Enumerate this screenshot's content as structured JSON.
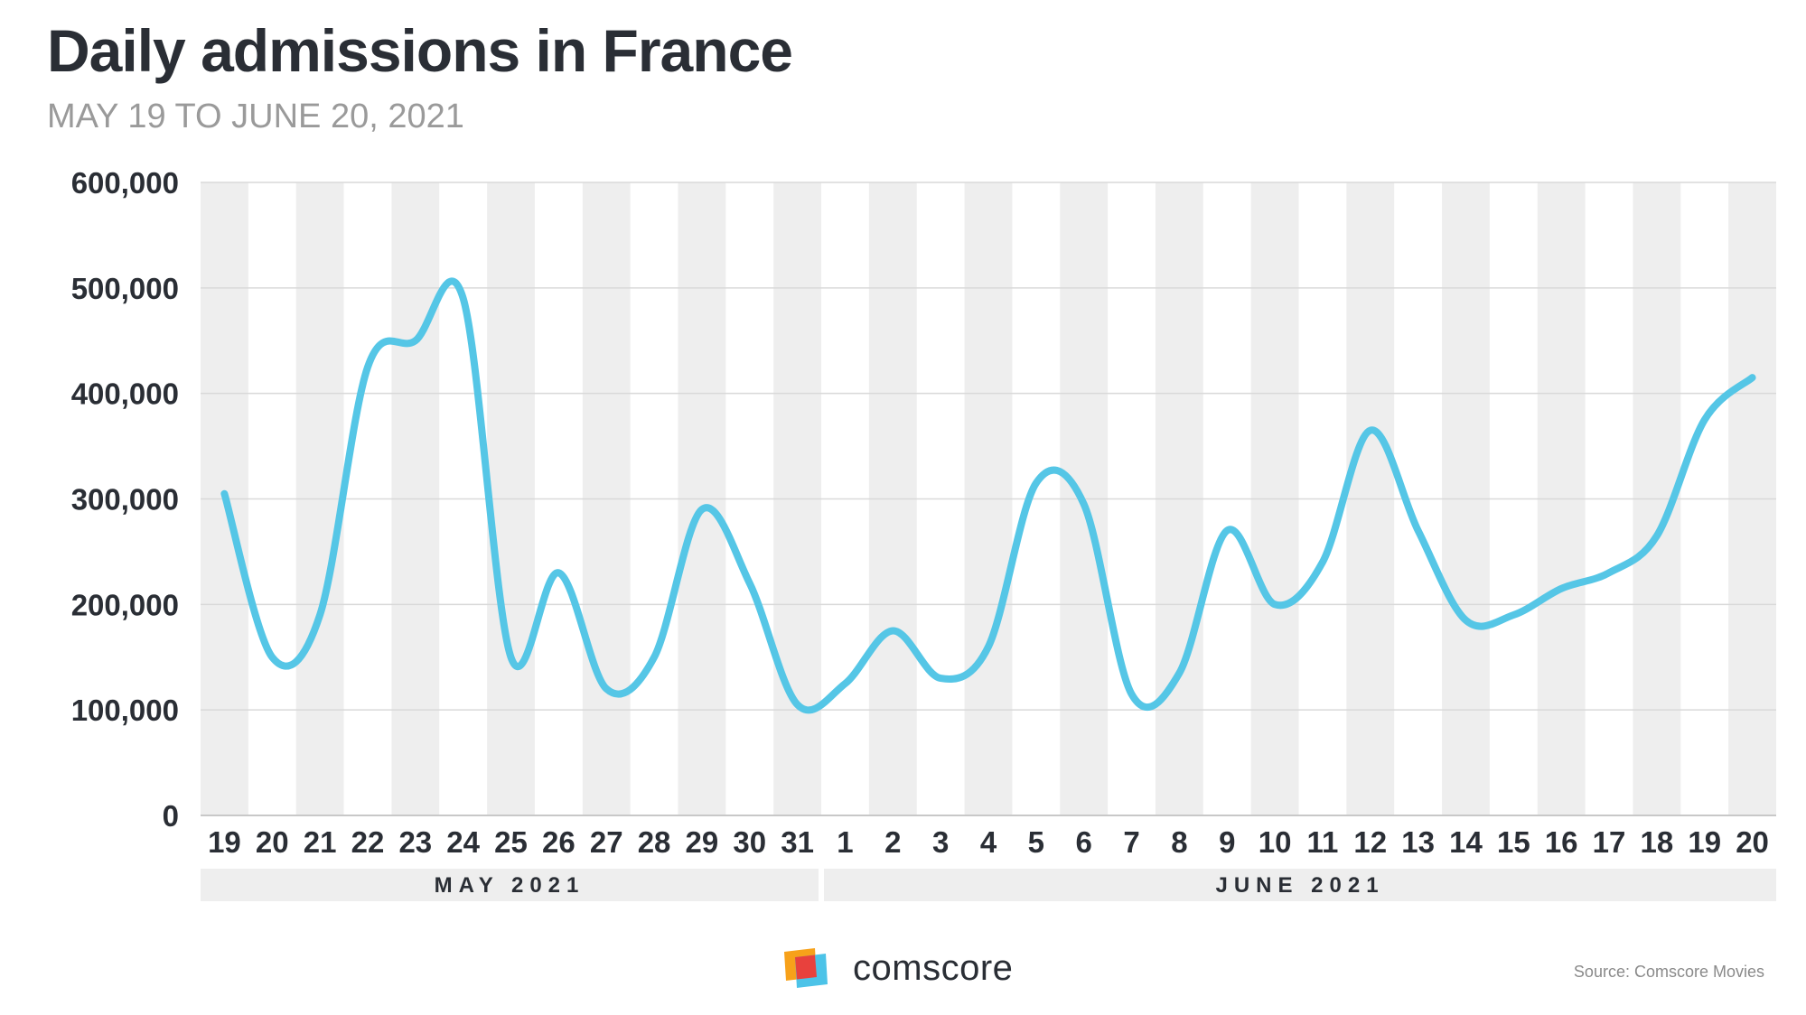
{
  "chart_data": {
    "type": "line",
    "title": "Daily admissions in France",
    "subtitle": "MAY 19 TO JUNE 20, 2021",
    "ylim": [
      0,
      600000
    ],
    "y_ticks": [
      "0",
      "100,000",
      "200,000",
      "300,000",
      "400,000",
      "500,000",
      "600,000"
    ],
    "categories": [
      "19",
      "20",
      "21",
      "22",
      "23",
      "24",
      "25",
      "26",
      "27",
      "28",
      "29",
      "30",
      "31",
      "1",
      "2",
      "3",
      "4",
      "5",
      "6",
      "7",
      "8",
      "9",
      "10",
      "11",
      "12",
      "13",
      "14",
      "15",
      "16",
      "17",
      "18",
      "19",
      "20"
    ],
    "months": [
      {
        "label": "MAY 2021",
        "first": 0,
        "last": 12
      },
      {
        "label": "JUNE 2021",
        "first": 13,
        "last": 32
      }
    ],
    "series": [
      {
        "values": [
          305000,
          150000,
          190000,
          425000,
          450000,
          490000,
          150000,
          230000,
          120000,
          150000,
          290000,
          220000,
          105000,
          125000,
          175000,
          130000,
          160000,
          315000,
          295000,
          115000,
          135000,
          270000,
          200000,
          240000,
          365000,
          270000,
          185000,
          190000,
          215000,
          230000,
          265000,
          375000,
          415000
        ]
      }
    ],
    "line_color": "#55c6e6",
    "band_color": "#eeeeee",
    "grid": true
  },
  "footer": {
    "logo_text": "comscore",
    "source": "Source: Comscore Movies"
  }
}
